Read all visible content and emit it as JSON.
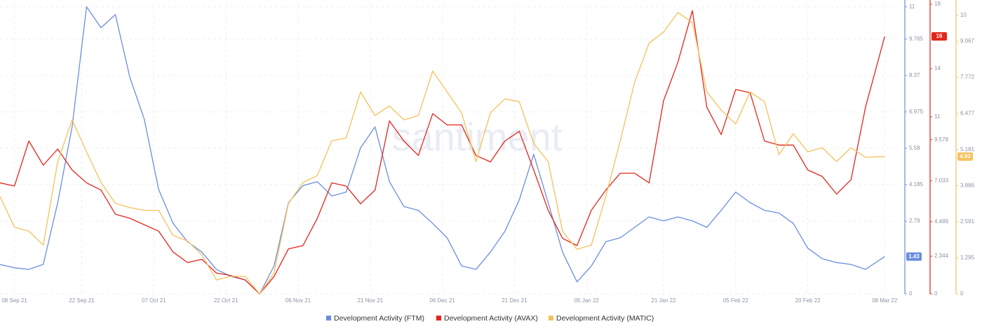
{
  "chart_data": {
    "type": "line",
    "watermark": "santiment",
    "x": [
      "2021-09-05",
      "2021-09-08",
      "2021-09-11",
      "2021-09-14",
      "2021-09-17",
      "2021-09-20",
      "2021-09-23",
      "2021-09-26",
      "2021-09-29",
      "2021-10-02",
      "2021-10-05",
      "2021-10-08",
      "2021-10-11",
      "2021-10-14",
      "2021-10-17",
      "2021-10-20",
      "2021-10-23",
      "2021-10-26",
      "2021-10-29",
      "2021-11-01",
      "2021-11-04",
      "2021-11-07",
      "2021-11-10",
      "2021-11-13",
      "2021-11-16",
      "2021-11-19",
      "2021-11-22",
      "2021-11-25",
      "2021-11-28",
      "2021-12-01",
      "2021-12-04",
      "2021-12-07",
      "2021-12-10",
      "2021-12-13",
      "2021-12-16",
      "2021-12-19",
      "2021-12-22",
      "2021-12-25",
      "2021-12-28",
      "2021-12-31",
      "2022-01-03",
      "2022-01-06",
      "2022-01-09",
      "2022-01-12",
      "2022-01-15",
      "2022-01-18",
      "2022-01-21",
      "2022-01-24",
      "2022-01-27",
      "2022-01-30",
      "2022-02-02",
      "2022-02-05",
      "2022-02-08",
      "2022-02-11",
      "2022-02-14",
      "2022-02-17",
      "2022-02-20",
      "2022-02-23",
      "2022-02-26",
      "2022-03-01",
      "2022-03-04",
      "2022-03-08"
    ],
    "xlim": [
      "2021-09-05",
      "2022-03-10"
    ],
    "xticks": [
      {
        "value": "2021-09-08",
        "label": "08 Sep 21"
      },
      {
        "value": "2021-09-22",
        "label": "22 Sep 21"
      },
      {
        "value": "2021-10-07",
        "label": "07 Oct 21"
      },
      {
        "value": "2021-10-22",
        "label": "22 Oct 21"
      },
      {
        "value": "2021-11-06",
        "label": "06 Nov 21"
      },
      {
        "value": "2021-11-21",
        "label": "21 Nov 21"
      },
      {
        "value": "2021-12-06",
        "label": "06 Dec 21"
      },
      {
        "value": "2021-12-21",
        "label": "21 Dec 21"
      },
      {
        "value": "2022-01-05",
        "label": "05 Jan 22"
      },
      {
        "value": "2022-01-21",
        "label": "21 Jan 22"
      },
      {
        "value": "2022-02-05",
        "label": "05 Feb 22"
      },
      {
        "value": "2022-02-20",
        "label": "20 Feb 22"
      },
      {
        "value": "2022-03-08",
        "label": "08 Mar 22"
      }
    ],
    "ylim": [
      0,
      11.1
    ],
    "yticks": [
      0,
      2.79,
      4.185,
      5.58,
      6.975,
      8.37,
      9.765,
      11
    ],
    "y2lim": [
      0,
      18
    ],
    "y2ticks": [
      0,
      2.344,
      4.489,
      7.033,
      9.578,
      11,
      14,
      18
    ],
    "y3lim": [
      0,
      10.4
    ],
    "y3ticks": [
      0,
      1.295,
      2.591,
      3.886,
      5.181,
      6.477,
      7.772,
      9.067,
      10
    ],
    "grid": true,
    "legend": "bottom",
    "series": [
      {
        "name": "Development Activity (FTM)",
        "color": "#6b8de0",
        "axis": "y",
        "values": [
          1.13,
          1.0,
          0.94,
          1.13,
          3.5,
          6.4,
          11.0,
          10.2,
          10.7,
          8.3,
          6.7,
          4.0,
          2.7,
          2.0,
          1.6,
          0.94,
          0.67,
          0.54,
          0,
          1.07,
          3.5,
          4.15,
          4.3,
          3.75,
          3.9,
          5.6,
          6.4,
          4.3,
          3.35,
          3.2,
          2.7,
          2.15,
          1.07,
          0.94,
          1.6,
          2.4,
          3.6,
          5.35,
          3.5,
          1.6,
          0.46,
          1.07,
          2.0,
          2.15,
          2.55,
          2.95,
          2.8,
          2.95,
          2.8,
          2.55,
          3.2,
          3.9,
          3.5,
          3.2,
          3.1,
          2.7,
          1.75,
          1.35,
          1.2,
          1.13,
          0.94,
          1.43
        ]
      },
      {
        "name": "Development Activity (AVAX)",
        "color": "#e3261c",
        "axis": "y2",
        "values": [
          6.9,
          6.7,
          9.5,
          8.0,
          9.0,
          7.7,
          6.9,
          6.45,
          4.95,
          4.7,
          4.3,
          3.9,
          2.6,
          1.95,
          2.15,
          1.3,
          1.15,
          0.86,
          0,
          1.08,
          2.8,
          3.0,
          4.7,
          6.9,
          6.7,
          5.6,
          6.45,
          10.75,
          9.5,
          8.6,
          11.2,
          10.5,
          10.5,
          8.6,
          8.2,
          9.5,
          10.1,
          7.7,
          5.2,
          3.45,
          3.0,
          5.2,
          6.45,
          7.5,
          7.5,
          6.9,
          12.0,
          14.4,
          17.6,
          11.6,
          9.9,
          12.7,
          12.5,
          9.5,
          9.25,
          9.25,
          7.7,
          7.3,
          6.2,
          7.1,
          11.6,
          16
        ]
      },
      {
        "name": "Development Activity (MATIC)",
        "color": "#f5c15c",
        "axis": "y3",
        "values": [
          3.5,
          2.4,
          2.25,
          1.75,
          4.75,
          6.25,
          5.1,
          4.0,
          3.25,
          3.1,
          3.0,
          3.0,
          2.1,
          1.9,
          1.4,
          0.5,
          0.63,
          0.63,
          0,
          0.75,
          3.25,
          4.0,
          4.25,
          5.5,
          5.6,
          7.25,
          6.4,
          6.75,
          6.25,
          6.4,
          8.0,
          7.25,
          6.5,
          4.75,
          6.5,
          7.0,
          6.9,
          5.4,
          4.75,
          2.25,
          1.6,
          1.75,
          3.5,
          5.5,
          7.6,
          9.0,
          9.4,
          10.1,
          9.75,
          7.25,
          6.6,
          6.1,
          7.25,
          6.9,
          5.0,
          5.75,
          5.1,
          5.25,
          4.75,
          5.25,
          4.9,
          4.93
        ]
      }
    ]
  }
}
